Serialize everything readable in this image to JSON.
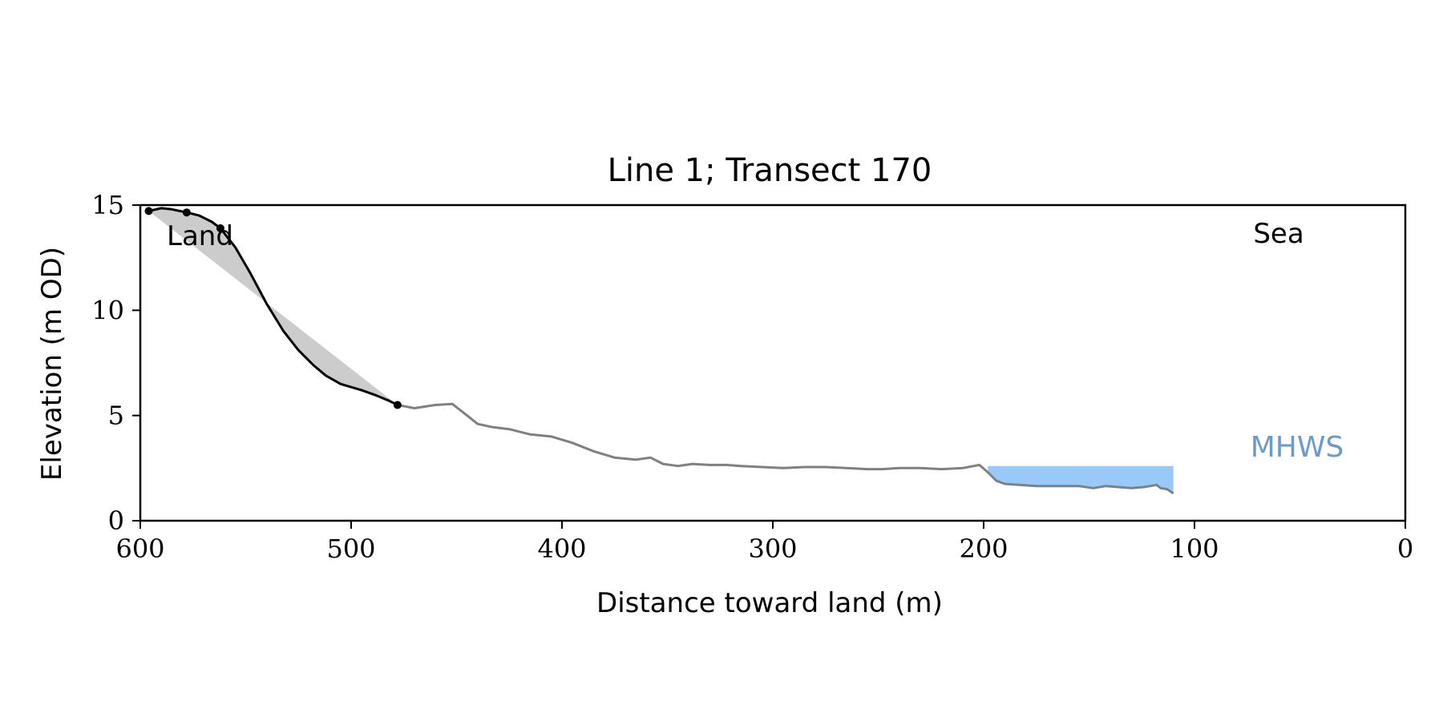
{
  "chart_data": {
    "type": "line",
    "title": "Line 1; Transect 170",
    "xlabel": "Distance toward land (m)",
    "ylabel": "Elevation (m OD)",
    "xlim": [
      600,
      0
    ],
    "ylim": [
      0,
      15
    ],
    "xticks": [
      600,
      500,
      400,
      300,
      200,
      100,
      0
    ],
    "yticks": [
      0,
      5,
      10,
      15
    ],
    "grid": false,
    "annotations": {
      "land": "Land",
      "sea": "Sea",
      "mhws": "MHWS"
    },
    "colors": {
      "profile": "#808080",
      "cliff": "#000000",
      "cliff_fill": "#cccccc",
      "water": "#99c9f8",
      "mhws_text": "#6b9bc8"
    },
    "water_level": 2.6,
    "water_x_range": [
      198,
      110
    ],
    "cliff_markers": [
      {
        "x": 596,
        "y": 14.72
      },
      {
        "x": 578,
        "y": 14.65
      },
      {
        "x": 562,
        "y": 13.9
      },
      {
        "x": 478,
        "y": 5.5
      }
    ],
    "profile": {
      "x": [
        478,
        470,
        460,
        452,
        445,
        440,
        433,
        425,
        415,
        405,
        395,
        385,
        375,
        365,
        358,
        352,
        345,
        338,
        330,
        322,
        315,
        305,
        295,
        285,
        275,
        265,
        255,
        248,
        240,
        230,
        220,
        210,
        202,
        198,
        194,
        190,
        183,
        175,
        165,
        155,
        148,
        142,
        136,
        130,
        124,
        118,
        116,
        113,
        110
      ],
      "y": [
        5.5,
        5.35,
        5.5,
        5.55,
        5.0,
        4.6,
        4.45,
        4.35,
        4.1,
        4.0,
        3.7,
        3.3,
        3.0,
        2.9,
        3.0,
        2.7,
        2.6,
        2.7,
        2.65,
        2.65,
        2.6,
        2.55,
        2.5,
        2.55,
        2.55,
        2.5,
        2.45,
        2.45,
        2.5,
        2.5,
        2.45,
        2.5,
        2.65,
        2.3,
        1.9,
        1.75,
        1.7,
        1.65,
        1.65,
        1.65,
        1.55,
        1.65,
        1.6,
        1.55,
        1.6,
        1.7,
        1.55,
        1.5,
        1.3
      ]
    },
    "cliff_profile": {
      "x": [
        596,
        590,
        585,
        578,
        572,
        566,
        562,
        555,
        548,
        540,
        532,
        525,
        518,
        512,
        505,
        500,
        495,
        488,
        482,
        478
      ],
      "y": [
        14.72,
        14.85,
        14.8,
        14.65,
        14.5,
        14.2,
        13.9,
        13.0,
        11.8,
        10.3,
        9.0,
        8.1,
        7.4,
        6.9,
        6.5,
        6.35,
        6.2,
        5.95,
        5.7,
        5.5
      ]
    },
    "cliff_chord": {
      "x": [
        596,
        478
      ],
      "y": [
        14.72,
        5.5
      ]
    }
  }
}
